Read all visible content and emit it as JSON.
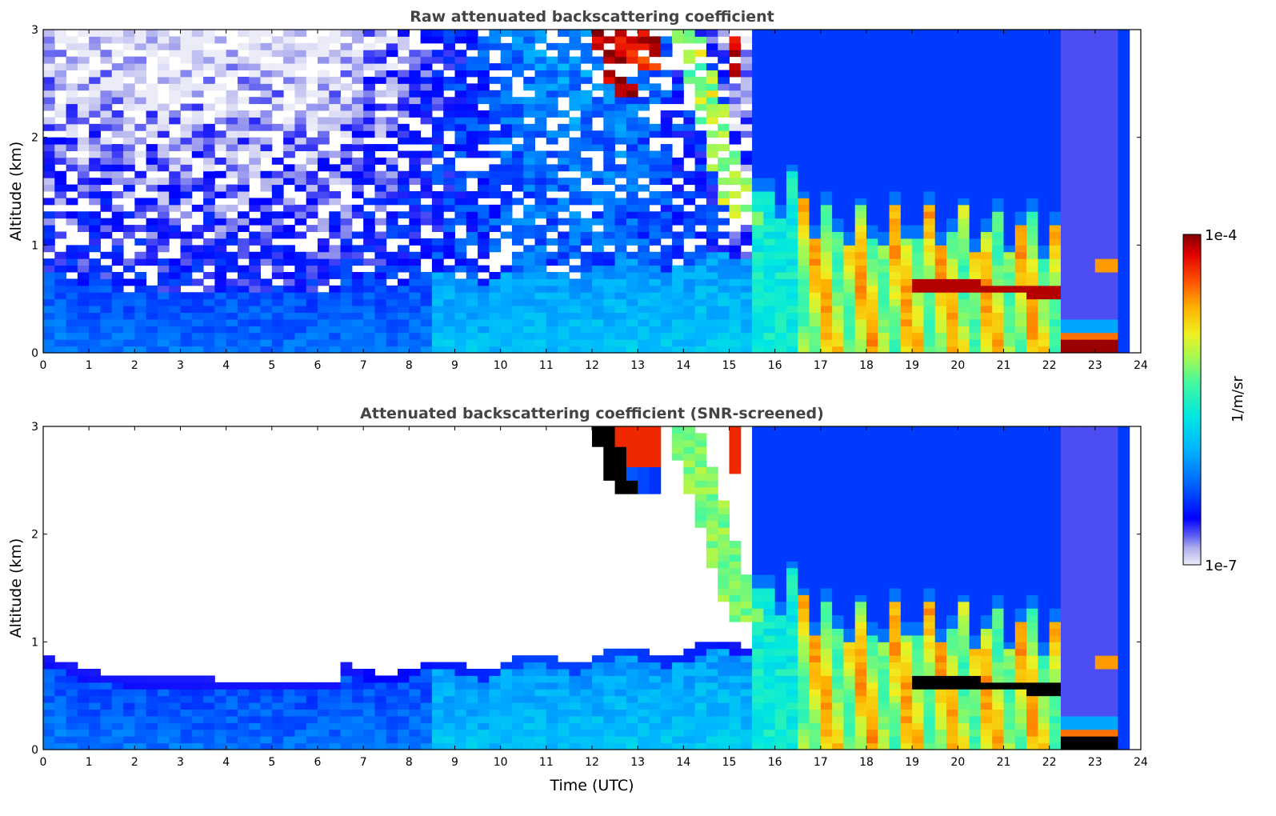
{
  "chart_data": [
    {
      "type": "heatmap",
      "title": "Raw attenuated backscattering coefficient",
      "xlabel": "",
      "ylabel": "Altitude (km)",
      "xlim": [
        0,
        24
      ],
      "ylim": [
        0,
        3
      ],
      "x_ticks": [
        "0",
        "1",
        "2",
        "3",
        "4",
        "5",
        "6",
        "7",
        "8",
        "9",
        "10",
        "11",
        "12",
        "13",
        "14",
        "15",
        "16",
        "17",
        "18",
        "19",
        "20",
        "21",
        "22",
        "23",
        "24"
      ],
      "y_ticks": [
        "0",
        "1",
        "2",
        "3"
      ],
      "screened": false
    },
    {
      "type": "heatmap",
      "title": "Attenuated backscattering coefficient (SNR-screened)",
      "xlabel": "Time (UTC)",
      "ylabel": "Altitude (km)",
      "xlim": [
        0,
        24
      ],
      "ylim": [
        0,
        3
      ],
      "x_ticks": [
        "0",
        "1",
        "2",
        "3",
        "4",
        "5",
        "6",
        "7",
        "8",
        "9",
        "10",
        "11",
        "12",
        "13",
        "14",
        "15",
        "16",
        "17",
        "18",
        "19",
        "20",
        "21",
        "22",
        "23",
        "24"
      ],
      "y_ticks": [
        "0",
        "1",
        "2",
        "3"
      ],
      "screened": true
    }
  ],
  "colorbar": {
    "label": "1/m/sr",
    "max_label": "1e-4",
    "min_label": "1e-7",
    "log_range": [
      -7,
      -4
    ],
    "colors": [
      "#ececf8",
      "#b0b0ee",
      "#5a5af2",
      "#0000ff",
      "#0060ff",
      "#00b4ff",
      "#00e8e0",
      "#44f8a0",
      "#a8f850",
      "#f0f020",
      "#ffb000",
      "#ff5000",
      "#e00000",
      "#800000"
    ]
  }
}
